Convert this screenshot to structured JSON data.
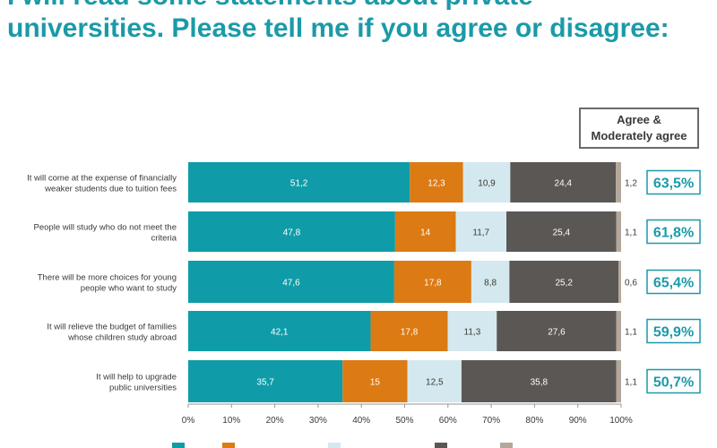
{
  "title_lines": [
    "I will read some statements about private",
    "universities. Please tell me if you agree or disagree:"
  ],
  "agree_header": [
    "Agree &",
    "Moderately agree"
  ],
  "chart_data": {
    "type": "bar",
    "orientation": "horizontal",
    "stacked": true,
    "percent_axis": true,
    "categories": [
      [
        "It will come at the expense of financially",
        "weaker students due to tuition fees"
      ],
      [
        "People will study who do not meet the",
        "criteria"
      ],
      [
        "There will be more choices for young",
        "people who want to study"
      ],
      [
        "It will relieve the budget of families",
        "whose children study abroad"
      ],
      [
        "It will help to upgrade",
        "public universities"
      ]
    ],
    "series": [
      {
        "color": "#0f9ca8",
        "values": [
          51.2,
          47.8,
          47.6,
          42.1,
          35.7
        ],
        "labels": [
          "51,2",
          "47,8",
          "47,6",
          "42,1",
          "35,7"
        ]
      },
      {
        "color": "#dc7a14",
        "values": [
          12.3,
          14,
          17.8,
          17.8,
          15
        ],
        "labels": [
          "12,3",
          "14",
          "17,8",
          "17,8",
          "15"
        ]
      },
      {
        "color": "#d4e9ef",
        "values": [
          10.9,
          11.7,
          8.8,
          11.3,
          12.5
        ],
        "labels": [
          "10,9",
          "11,7",
          "8,8",
          "11,3",
          "12,5"
        ]
      },
      {
        "color": "#5b5754",
        "values": [
          24.4,
          25.4,
          25.2,
          27.6,
          35.8
        ],
        "labels": [
          "24,4",
          "25,4",
          "25,2",
          "27,6",
          "35,8"
        ]
      },
      {
        "color": "#b3a89b",
        "values": [
          1.2,
          1.1,
          0.6,
          1.1,
          1.1
        ],
        "labels": [
          "1,2",
          "1,1",
          "0,6",
          "1,1",
          "1,1"
        ]
      }
    ],
    "agree_totals": [
      "63,5%",
      "61,8%",
      "65,4%",
      "59,9%",
      "50,7%"
    ],
    "xlim": [
      0,
      100
    ],
    "xticks": [
      "0%",
      "10%",
      "20%",
      "30%",
      "40%",
      "50%",
      "60%",
      "70%",
      "80%",
      "90%",
      "100%"
    ],
    "grid": false,
    "legend_position": "bottom"
  }
}
